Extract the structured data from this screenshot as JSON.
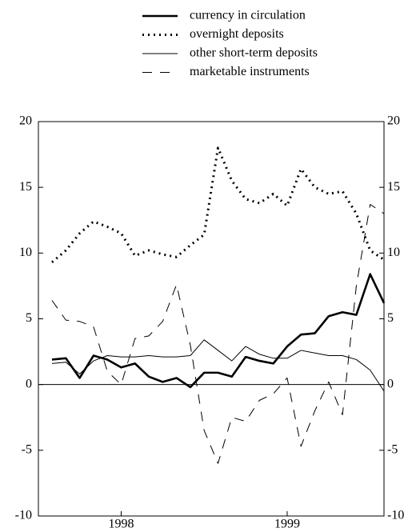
{
  "chart_data": {
    "type": "line",
    "categories": [
      null,
      null,
      null,
      null,
      null,
      "1998",
      null,
      null,
      null,
      null,
      null,
      null,
      null,
      null,
      null,
      null,
      null,
      "1999",
      null,
      null,
      null,
      null,
      null,
      null,
      null
    ],
    "series": [
      {
        "name": "currency in circulation",
        "color": "#000000",
        "linestyle": "solid",
        "linewidth": 2.6,
        "values": [
          1.9,
          2.0,
          0.5,
          2.2,
          1.9,
          1.3,
          1.6,
          0.6,
          0.2,
          0.5,
          -0.2,
          0.9,
          0.9,
          0.6,
          2.1,
          1.8,
          1.6,
          2.9,
          3.8,
          3.9,
          5.2,
          5.5,
          5.3,
          8.4,
          6.2
        ]
      },
      {
        "name": "overnight deposits",
        "color": "#000000",
        "linestyle": "dotted",
        "linewidth": 3,
        "values": [
          9.3,
          10.2,
          11.5,
          12.4,
          12.0,
          11.5,
          9.8,
          10.2,
          9.9,
          9.7,
          10.6,
          11.4,
          18.0,
          15.5,
          14.1,
          13.8,
          14.5,
          13.6,
          16.4,
          15.0,
          14.5,
          14.7,
          13.0,
          10.2,
          9.5
        ]
      },
      {
        "name": "other short-term deposits",
        "color": "#000000",
        "linestyle": "solid",
        "linewidth": 1,
        "values": [
          1.6,
          1.7,
          0.8,
          1.8,
          2.2,
          2.1,
          2.1,
          2.2,
          2.1,
          2.1,
          2.2,
          3.4,
          2.6,
          1.8,
          2.9,
          2.3,
          2.0,
          2.0,
          2.6,
          2.4,
          2.2,
          2.2,
          1.9,
          1.1,
          -0.5
        ]
      },
      {
        "name": "marketable instruments",
        "color": "#000000",
        "linestyle": "dashed",
        "linewidth": 1,
        "values": [
          6.4,
          4.9,
          4.8,
          4.4,
          1.0,
          0.0,
          3.5,
          3.7,
          4.8,
          7.6,
          3.0,
          -3.5,
          -6.0,
          -2.5,
          -2.8,
          -1.2,
          -0.7,
          0.5,
          -4.7,
          -2.0,
          0.2,
          -2.3,
          7.5,
          13.7,
          13.0
        ]
      }
    ],
    "ylim": [
      -10,
      20
    ],
    "yticks": [
      -10,
      -5,
      0,
      5,
      10,
      15,
      20
    ],
    "y2lim": [
      -10,
      20
    ],
    "y2ticks": [
      -10,
      -5,
      0,
      5,
      10,
      15,
      20
    ],
    "zero_line": true,
    "grid": false,
    "legend": "top"
  }
}
